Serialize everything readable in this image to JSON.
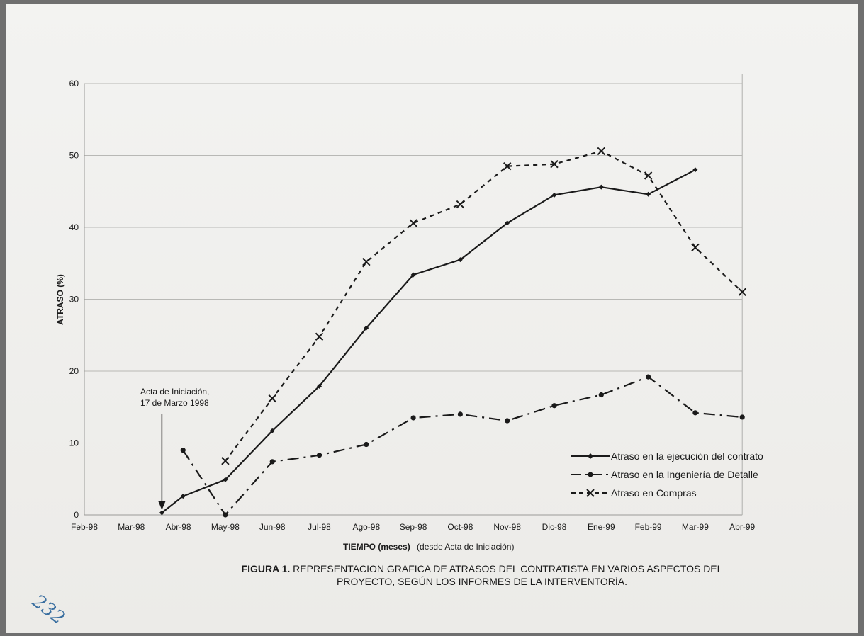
{
  "chart_data": {
    "type": "line",
    "ylabel": "ATRASO (%)",
    "xlabel": "TIEMPO (meses)",
    "xlabel_note": "(desde Acta de Iniciación)",
    "ylim": [
      0,
      60
    ],
    "yticks": [
      0,
      10,
      20,
      30,
      40,
      50,
      60
    ],
    "grid": "horizontal",
    "legend_position": "bottom-right",
    "categories": [
      "Feb-98",
      "Mar-98",
      "Abr-98",
      "May-98",
      "Jun-98",
      "Jul-98",
      "Ago-98",
      "Sep-98",
      "Oct-98",
      "Nov-98",
      "Dic-98",
      "Ene-99",
      "Feb-99",
      "Mar-99",
      "Abr-99"
    ],
    "series": [
      {
        "name": "Atraso en la ejecución del contrato",
        "style": "solid",
        "marker": "diamond",
        "points": [
          {
            "x": 1.65,
            "y": 0.3
          },
          {
            "x": 2.1,
            "y": 2.6
          },
          {
            "x": 3.0,
            "y": 4.9
          },
          {
            "x": 4.0,
            "y": 11.7
          },
          {
            "x": 5.0,
            "y": 17.9
          },
          {
            "x": 6.0,
            "y": 26.0
          },
          {
            "x": 7.0,
            "y": 33.4
          },
          {
            "x": 8.0,
            "y": 35.5
          },
          {
            "x": 9.0,
            "y": 40.6
          },
          {
            "x": 10.0,
            "y": 44.5
          },
          {
            "x": 11.0,
            "y": 45.6
          },
          {
            "x": 12.0,
            "y": 44.6
          },
          {
            "x": 13.0,
            "y": 48.0
          }
        ]
      },
      {
        "name": "Atraso en la Ingeniería de Detalle",
        "style": "dashdot",
        "marker": "circle",
        "points": [
          {
            "x": 2.1,
            "y": 9.0
          },
          {
            "x": 3.0,
            "y": 0.0
          },
          {
            "x": 4.0,
            "y": 7.4
          },
          {
            "x": 5.0,
            "y": 8.3
          },
          {
            "x": 6.0,
            "y": 9.8
          },
          {
            "x": 7.0,
            "y": 13.5
          },
          {
            "x": 8.0,
            "y": 14.0
          },
          {
            "x": 9.0,
            "y": 13.1
          },
          {
            "x": 10.0,
            "y": 15.2
          },
          {
            "x": 11.0,
            "y": 16.7
          },
          {
            "x": 12.0,
            "y": 19.2
          },
          {
            "x": 13.0,
            "y": 14.2
          },
          {
            "x": 14.0,
            "y": 13.6
          }
        ]
      },
      {
        "name": "Atraso en Compras",
        "style": "dashed",
        "marker": "x",
        "points": [
          {
            "x": 3.0,
            "y": 7.5
          },
          {
            "x": 4.0,
            "y": 16.2
          },
          {
            "x": 5.0,
            "y": 24.8
          },
          {
            "x": 6.0,
            "y": 35.2
          },
          {
            "x": 7.0,
            "y": 40.6
          },
          {
            "x": 8.0,
            "y": 43.2
          },
          {
            "x": 9.0,
            "y": 48.5
          },
          {
            "x": 10.0,
            "y": 48.8
          },
          {
            "x": 11.0,
            "y": 50.6
          },
          {
            "x": 12.0,
            "y": 47.2
          },
          {
            "x": 13.0,
            "y": 37.2
          },
          {
            "x": 14.0,
            "y": 31.0
          }
        ]
      }
    ],
    "annotations": [
      {
        "text_lines": [
          "Acta de Iniciación,",
          "17 de Marzo 1998"
        ],
        "x": 1.65,
        "y": 0.3,
        "arrow": "down"
      }
    ]
  },
  "caption": {
    "label": "FIGURA 1.",
    "line1": " REPRESENTACION GRAFICA DE ATRASOS DEL CONTRATISTA EN VARIOS ASPECTOS DEL",
    "line2": "PROYECTO, SEGÚN LOS INFORMES DE LA INTERVENTORÍA."
  },
  "page_mark": "232",
  "colors": {
    "ink": "#1a1a1a",
    "grid": "#b8b8b5",
    "paper": "#efeeeb"
  }
}
